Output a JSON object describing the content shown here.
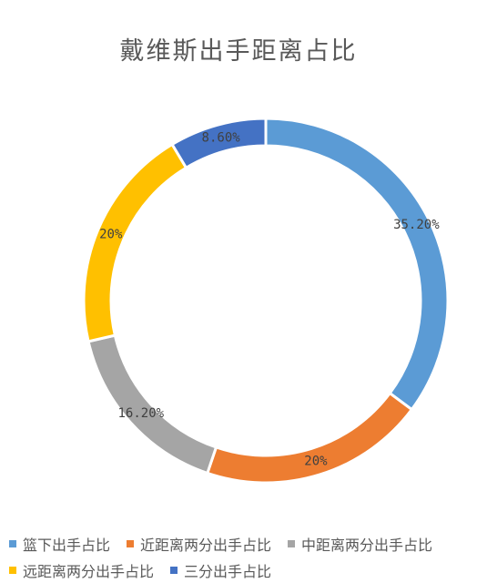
{
  "chart_data": {
    "type": "pie",
    "variant": "donut",
    "title": "戴维斯出手距离占比",
    "slices": [
      {
        "name": "篮下出手占比",
        "value": 35.2,
        "label": "35.20%",
        "color": "#5B9BD5"
      },
      {
        "name": "近距离两分出手占比",
        "value": 20,
        "label": "20%",
        "color": "#ED7D31"
      },
      {
        "name": "中距离两分出手占比",
        "value": 16.2,
        "label": "16.20%",
        "color": "#A5A5A5"
      },
      {
        "name": "远距离两分出手占比",
        "value": 20,
        "label": "20%",
        "color": "#FFC000"
      },
      {
        "name": "三分出手占比",
        "value": 8.6,
        "label": "8.60%",
        "color": "#4472C4"
      }
    ],
    "legend_position": "bottom",
    "legend_rows": [
      [
        "篮下出手占比",
        "近距离两分出手占比",
        "中距离两分出手占比"
      ],
      [
        "远距离两分出手占比",
        "三分出手占比"
      ]
    ]
  }
}
